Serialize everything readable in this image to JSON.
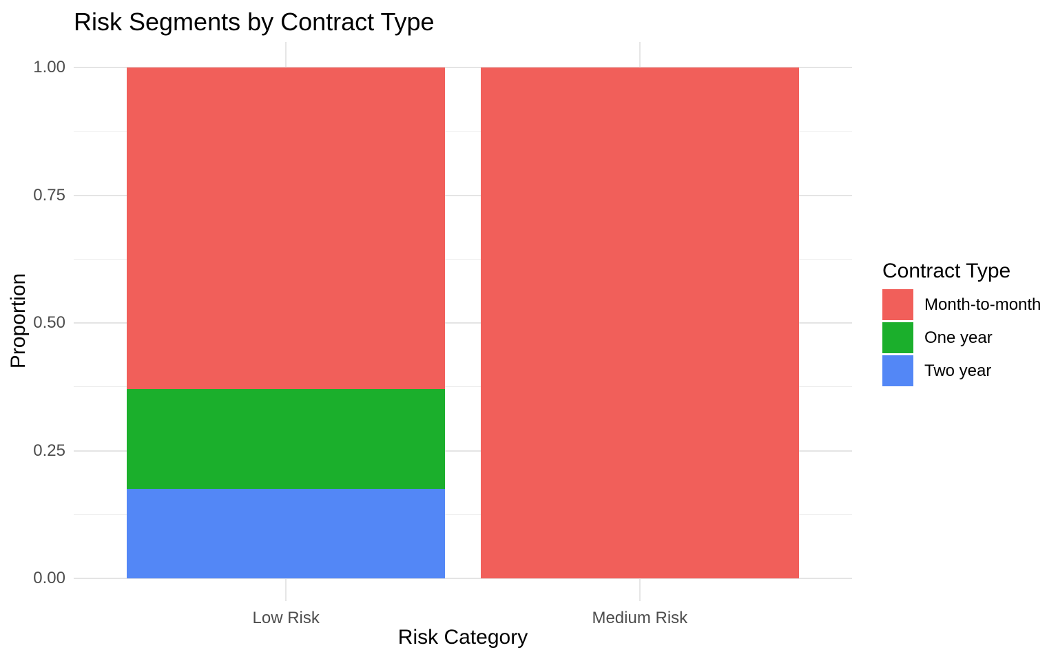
{
  "title": "Risk Segments by Contract Type",
  "chart_data": {
    "type": "bar",
    "stacked": true,
    "normalized": true,
    "title": "Risk Segments by Contract Type",
    "xlabel": "Risk Category",
    "ylabel": "Proportion",
    "categories": [
      "Low Risk",
      "Medium Risk"
    ],
    "series": [
      {
        "name": "Month-to-month",
        "color": "#F15F5A",
        "values": [
          0.63,
          1.0
        ]
      },
      {
        "name": "One year",
        "color": "#1BAF2C",
        "values": [
          0.195,
          0.0
        ]
      },
      {
        "name": "Two year",
        "color": "#5387F6",
        "values": [
          0.175,
          0.0
        ]
      }
    ],
    "ylim": [
      0,
      1
    ],
    "y_major_ticks": [
      {
        "value": 1.0,
        "label": "1.00"
      },
      {
        "value": 0.75,
        "label": "0.75"
      },
      {
        "value": 0.5,
        "label": "0.50"
      },
      {
        "value": 0.25,
        "label": "0.25"
      },
      {
        "value": 0.0,
        "label": "0.00"
      }
    ],
    "y_minor_ticks": [
      0.875,
      0.625,
      0.375,
      0.125
    ],
    "grid": "major-and-minor",
    "legend_title": "Contract Type",
    "legend_position": "right",
    "colors": {
      "background": "#ffffff",
      "grid_major": "#e4e4e4",
      "grid_minor": "#ededed",
      "tick_label": "#4d4d4d",
      "text": "#000000"
    }
  }
}
